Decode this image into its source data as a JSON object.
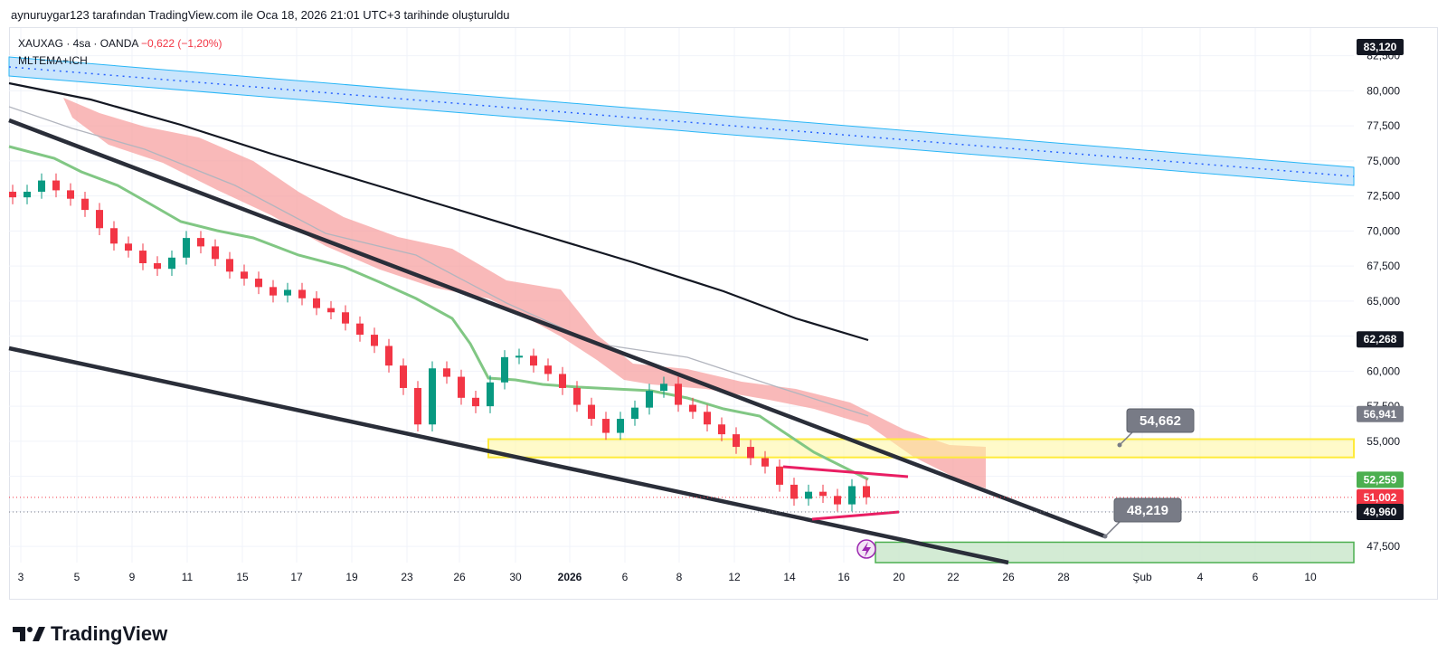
{
  "header": {
    "attribution": "aynuruygar123 tarafından TradingView.com ile Oca 18, 2026 21:01 UTC+3 tarihinde oluşturuldu"
  },
  "legend": {
    "symbol": "XAUXAG · 4sa · OANDA",
    "change": "−0,622 (−1,20%)",
    "indicator": "MLTEMA+ICH"
  },
  "brand": {
    "name": "TradingView"
  },
  "colors": {
    "up": "#089981",
    "down": "#f23645",
    "cloud": "#f7a1a1",
    "ema": "#81c784",
    "zone": "#fff59d",
    "accent": "#2962ff"
  },
  "chart_data": {
    "type": "candlestick",
    "y_axis": {
      "range": [
        46800,
        83800
      ],
      "ticks": [
        "82,500",
        "80,000",
        "77,500",
        "75,000",
        "72,500",
        "70,000",
        "67,500",
        "65,000",
        "62,500",
        "60,000",
        "57,500",
        "55,000",
        "52,500",
        "50,000",
        "47,500"
      ],
      "tick_values": [
        82500,
        80000,
        77500,
        75000,
        72500,
        70000,
        67500,
        65000,
        62500,
        60000,
        57500,
        55000,
        52500,
        50000,
        47500
      ]
    },
    "x_axis": {
      "ticks": [
        "3",
        "5",
        "9",
        "11",
        "15",
        "17",
        "19",
        "23",
        "26",
        "30",
        "2026",
        "6",
        "8",
        "12",
        "14",
        "16",
        "20",
        "22",
        "26",
        "28",
        "Şub",
        "4",
        "6",
        "10"
      ]
    },
    "price_labels": [
      {
        "text": "83,120",
        "value": 83120,
        "color": "#131722"
      },
      {
        "text": "62,268",
        "value": 62268,
        "color": "#131722"
      },
      {
        "text": "56,941",
        "value": 56941,
        "color": "#787b86"
      },
      {
        "text": "52,259",
        "value": 52259,
        "color": "#4caf50"
      },
      {
        "text": "51,002",
        "value": 51002,
        "color": "#f23645"
      },
      {
        "text": "49,960",
        "value": 49960,
        "color": "#131722"
      }
    ],
    "callouts": [
      {
        "text": "54,662",
        "value": 54662
      },
      {
        "text": "48,219",
        "value": 48219
      }
    ],
    "last_price": 51002,
    "zones": [
      {
        "name": "resistance-zone",
        "from": 53850,
        "to": 55150,
        "color": "#fff59d"
      },
      {
        "name": "target-zone",
        "from": 46800,
        "to": 47800,
        "color": "#c8e6c9"
      }
    ],
    "close_series": [
      72400,
      72800,
      73600,
      72900,
      72300,
      71500,
      70200,
      69100,
      68600,
      67700,
      67300,
      68100,
      69500,
      68900,
      68000,
      67100,
      66600,
      66000,
      65400,
      65800,
      65200,
      64500,
      64200,
      63400,
      62600,
      61800,
      60400,
      58800,
      56200,
      60200,
      59600,
      58100,
      57500,
      59200,
      61000,
      61100,
      60400,
      59800,
      58800,
      57600,
      56600,
      55600,
      56600,
      57400,
      58600,
      59100,
      57600,
      57100,
      56200,
      55500,
      54600,
      53800,
      53200,
      51900,
      50900,
      51400,
      51100,
      50500,
      51800,
      51002
    ]
  }
}
